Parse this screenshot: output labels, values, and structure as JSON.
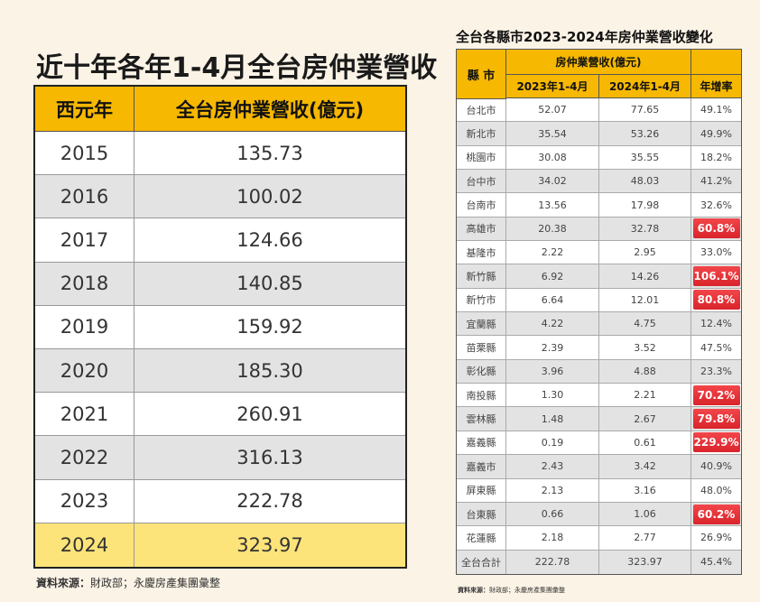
{
  "left": {
    "title": "近十年各年1-4月全台房仲業營收",
    "headers": [
      "西元年",
      "全台房仲業營收(億元)"
    ],
    "rows": [
      [
        "2015",
        "135.73"
      ],
      [
        "2016",
        "100.02"
      ],
      [
        "2017",
        "124.66"
      ],
      [
        "2018",
        "140.85"
      ],
      [
        "2019",
        "159.92"
      ],
      [
        "2020",
        "185.30"
      ],
      [
        "2021",
        "260.91"
      ],
      [
        "2022",
        "316.13"
      ],
      [
        "2023",
        "222.78"
      ],
      [
        "2024",
        "323.97"
      ]
    ],
    "source_label": "資料來源：",
    "source_text": "財政部；永慶房產集團彙整"
  },
  "right": {
    "title": "全台各縣市2023-2024年房仲業營收變化",
    "header_county": "縣 市",
    "header_group": "房仲業營收(億元)",
    "header_cols": [
      "2023年1-4月",
      "2024年1-4月",
      "年增率"
    ],
    "rows": [
      [
        "台北市",
        "52.07",
        "77.65",
        "49.1%"
      ],
      [
        "新北市",
        "35.54",
        "53.26",
        "49.9%"
      ],
      [
        "桃園市",
        "30.08",
        "35.55",
        "18.2%"
      ],
      [
        "台中市",
        "34.02",
        "48.03",
        "41.2%"
      ],
      [
        "台南市",
        "13.56",
        "17.98",
        "32.6%"
      ],
      [
        "高雄市",
        "20.38",
        "32.78",
        "60.8%"
      ],
      [
        "基隆市",
        "2.22",
        "2.95",
        "33.0%"
      ],
      [
        "新竹縣",
        "6.92",
        "14.26",
        "106.1%"
      ],
      [
        "新竹市",
        "6.64",
        "12.01",
        "80.8%"
      ],
      [
        "宜蘭縣",
        "4.22",
        "4.75",
        "12.4%"
      ],
      [
        "苗栗縣",
        "2.39",
        "3.52",
        "47.5%"
      ],
      [
        "彰化縣",
        "3.96",
        "4.88",
        "23.3%"
      ],
      [
        "南投縣",
        "1.30",
        "2.21",
        "70.2%"
      ],
      [
        "雲林縣",
        "1.48",
        "2.67",
        "79.8%"
      ],
      [
        "嘉義縣",
        "0.19",
        "0.61",
        "229.9%"
      ],
      [
        "嘉義市",
        "2.43",
        "3.42",
        "40.9%"
      ],
      [
        "屏東縣",
        "2.13",
        "3.16",
        "48.0%"
      ],
      [
        "台東縣",
        "0.66",
        "1.06",
        "60.2%"
      ],
      [
        "花蓮縣",
        "2.18",
        "2.77",
        "26.9%"
      ],
      [
        "全台合計",
        "222.78",
        "323.97",
        "45.4%"
      ]
    ],
    "highlight_rows": [
      5,
      7,
      8,
      12,
      13,
      14,
      17
    ],
    "source_label": "資料來源：",
    "source_text": "財政部；永慶房產集團彙整"
  },
  "colors": {
    "background": "#fbf3e6",
    "header_yellow": "#f6b800",
    "highlight_row": "#fde47a",
    "badge_red": "#e0282e"
  }
}
